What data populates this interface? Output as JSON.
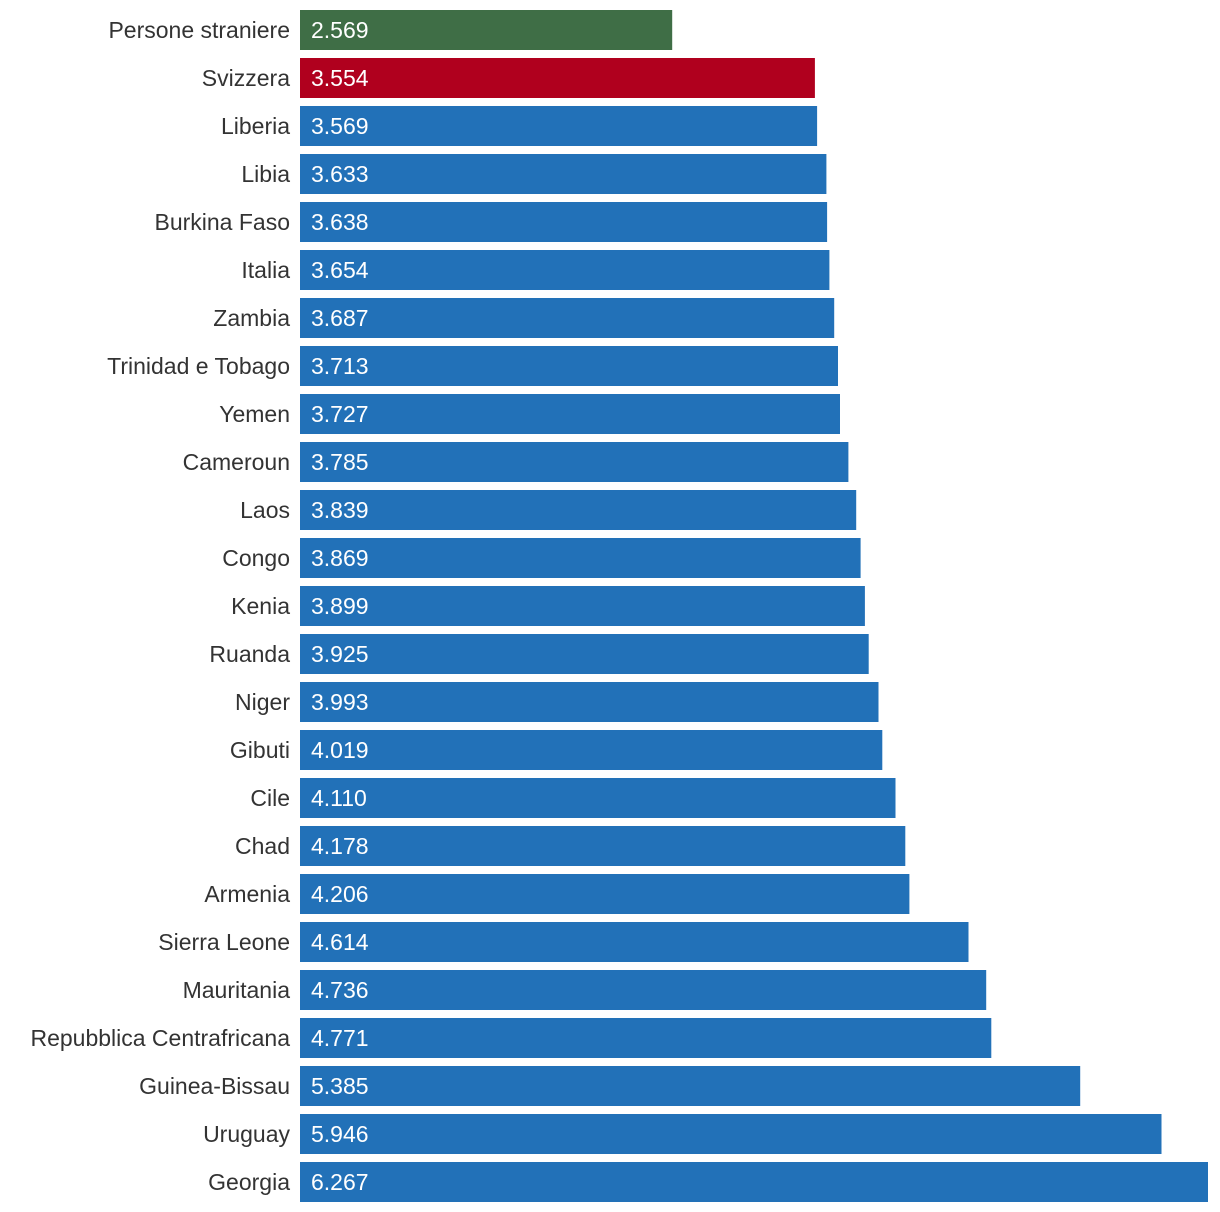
{
  "chart_data": {
    "type": "bar",
    "orientation": "horizontal",
    "title": "",
    "xlabel": "",
    "ylabel": "",
    "grid": false,
    "xlim": [
      0,
      6.267
    ],
    "categories": [
      "Persone straniere",
      "Svizzera",
      "Liberia",
      "Libia",
      "Burkina Faso",
      "Italia",
      "Zambia",
      "Trinidad e Tobago",
      "Yemen",
      "Cameroun",
      "Laos",
      "Congo",
      "Kenia",
      "Ruanda",
      "Niger",
      "Gibuti",
      "Cile",
      "Chad",
      "Armenia",
      "Sierra Leone",
      "Mauritania",
      "Repubblica Centrafricana",
      "Guinea-Bissau",
      "Uruguay",
      "Georgia"
    ],
    "values": [
      2.569,
      3.554,
      3.569,
      3.633,
      3.638,
      3.654,
      3.687,
      3.713,
      3.727,
      3.785,
      3.839,
      3.869,
      3.899,
      3.925,
      3.993,
      4.019,
      4.11,
      4.178,
      4.206,
      4.614,
      4.736,
      4.771,
      5.385,
      5.946,
      6.267
    ],
    "value_labels": [
      "2.569",
      "3.554",
      "3.569",
      "3.633",
      "3.638",
      "3.654",
      "3.687",
      "3.713",
      "3.727",
      "3.785",
      "3.839",
      "3.869",
      "3.899",
      "3.925",
      "3.993",
      "4.019",
      "4.110",
      "4.178",
      "4.206",
      "4.614",
      "4.736",
      "4.771",
      "5.385",
      "5.946",
      "6.267"
    ],
    "colors": {
      "default": "#2271b8",
      "Persone straniere": "#3f6e46",
      "Svizzera": "#b0001e"
    }
  }
}
